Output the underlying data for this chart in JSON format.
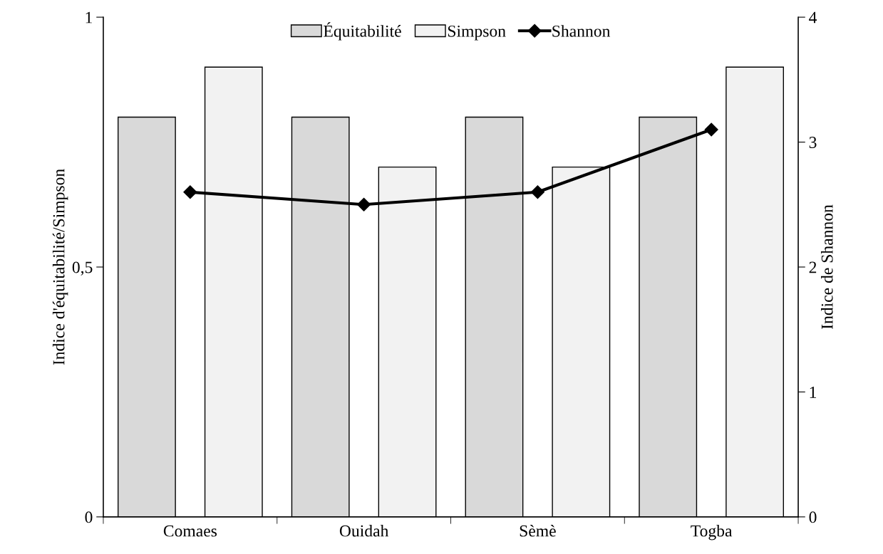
{
  "chart_data": {
    "type": "bar",
    "categories": [
      "Comaes",
      "Ouidah",
      "Sèmè",
      "Togba"
    ],
    "ylabel": "Indice d'équitabilité/Simpson",
    "y2label": "Indice de Shannon",
    "ylim": [
      0,
      1
    ],
    "yticks": [
      0,
      {
        "value": 0.5,
        "label": "0,5"
      },
      1
    ],
    "y2lim": [
      0,
      4
    ],
    "y2ticks": [
      0,
      1,
      2,
      3,
      4
    ],
    "series": [
      {
        "name": "Équitabilité",
        "color": "#d9d9d9",
        "values": [
          0.8,
          0.8,
          0.8,
          0.8
        ]
      },
      {
        "name": "Simpson",
        "color": "#f2f2f2",
        "values": [
          0.9,
          0.7,
          0.7,
          0.9
        ]
      },
      {
        "name": "Shannon",
        "type": "line",
        "axis": "y2",
        "color": "#000000",
        "marker": "diamond",
        "line_style": "solid",
        "values": [
          2.6,
          2.5,
          2.6,
          3.1
        ]
      }
    ],
    "legend": "top",
    "grid": false
  }
}
